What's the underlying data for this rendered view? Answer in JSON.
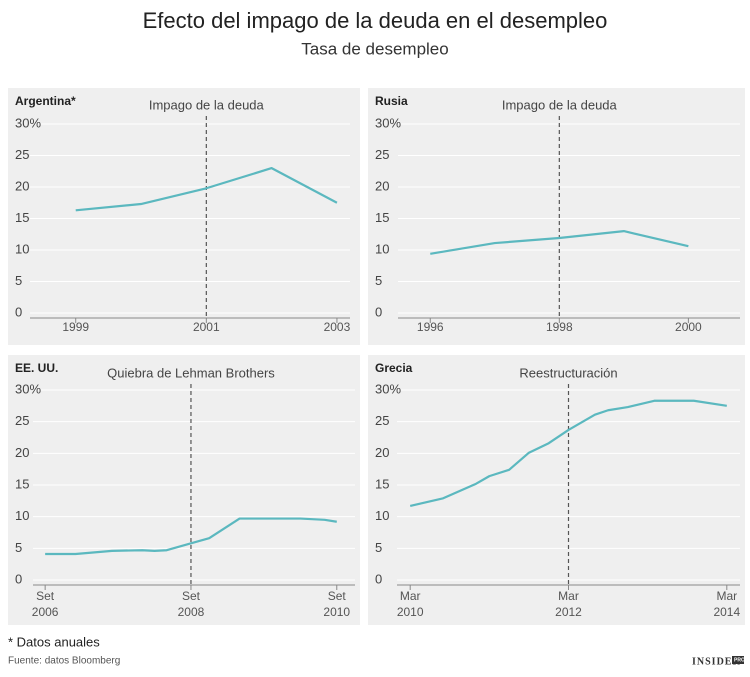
{
  "title": "Efecto del impago de la deuda en el desempleo",
  "subtitle": "Tasa de desempleo",
  "footnote": "* Datos anuales",
  "source": "Fuente: datos Bloomberg",
  "logo": "INSIDER",
  "logo_badge": "PRO",
  "chart_data": [
    {
      "type": "line",
      "title": "Argentina*",
      "color": "#5bb8bf",
      "grid": true,
      "annotation": {
        "text": "Impago de la deuda",
        "x": 2001
      },
      "x": [
        1999,
        2000,
        2001,
        2002,
        2003
      ],
      "values": [
        16.3,
        17.3,
        19.8,
        23.0,
        17.5
      ],
      "xlim": [
        1998.3,
        2003.2
      ],
      "xticks": [
        1999,
        2001,
        2003
      ],
      "ylim": [
        0,
        30
      ],
      "yticks": [
        0,
        5,
        10,
        15,
        20,
        25,
        {
          "value": 30,
          "label": "30%"
        }
      ]
    },
    {
      "type": "line",
      "title": "Rusia",
      "color": "#5bb8bf",
      "grid": true,
      "annotation": {
        "text": "Impago de la deuda",
        "x": 1998
      },
      "x": [
        1996,
        1997,
        1998,
        1999,
        2000
      ],
      "values": [
        9.4,
        11.1,
        11.9,
        13.0,
        10.6
      ],
      "xlim": [
        1995.5,
        2000.8
      ],
      "xticks": [
        1996,
        1998,
        2000
      ],
      "ylim": [
        0,
        30
      ],
      "yticks": [
        0,
        5,
        10,
        15,
        20,
        25,
        {
          "value": 30,
          "label": "30%"
        }
      ]
    },
    {
      "type": "line",
      "title": "EE. UU.",
      "color": "#5bb8bf",
      "grid": true,
      "annotation": {
        "text": "Quiebra de Lehman Brothers",
        "x": "2008-09"
      },
      "x": [
        "2006-09",
        "2007-02",
        "2007-08",
        "2008-01",
        "2008-03",
        "2008-05",
        "2008-09",
        "2008-12",
        "2009-05",
        "2010-03",
        "2010-07",
        "2010-09"
      ],
      "values": [
        4.1,
        4.1,
        4.6,
        4.7,
        4.6,
        4.7,
        5.8,
        6.6,
        9.7,
        9.7,
        9.5,
        9.2
      ],
      "xlim": [
        "2006-07",
        "2010-12"
      ],
      "xticks": [
        {
          "value": "2006-09",
          "label": "Set\n2006"
        },
        {
          "value": "2008-09",
          "label": "Set\n2008"
        },
        {
          "value": "2010-09",
          "label": "Set\n2010"
        }
      ],
      "ylim": [
        0,
        30
      ],
      "yticks": [
        0,
        5,
        10,
        15,
        20,
        25,
        {
          "value": 30,
          "label": "30%"
        }
      ]
    },
    {
      "type": "line",
      "title": "Grecia",
      "color": "#5bb8bf",
      "grid": true,
      "annotation": {
        "text": "Reestructuración",
        "x": "2012-03"
      },
      "x": [
        "2010-03",
        "2010-08",
        "2011-01",
        "2011-03",
        "2011-06",
        "2011-09",
        "2011-12",
        "2012-03",
        "2012-05",
        "2012-07",
        "2012-09",
        "2012-12",
        "2013-04",
        "2013-10",
        "2014-03"
      ],
      "values": [
        11.7,
        12.9,
        15.2,
        16.4,
        17.4,
        20.1,
        21.6,
        23.7,
        24.9,
        26.1,
        26.8,
        27.3,
        28.3,
        28.3,
        27.5
      ],
      "xlim": [
        "2010-01",
        "2014-05"
      ],
      "xticks": [
        {
          "value": "2010-03",
          "label": "Mar\n2010"
        },
        {
          "value": "2012-03",
          "label": "Mar\n2012"
        },
        {
          "value": "2014-03",
          "label": "Mar\n2014"
        }
      ],
      "ylim": [
        0,
        30
      ],
      "yticks": [
        0,
        5,
        10,
        15,
        20,
        25,
        {
          "value": 30,
          "label": "30%"
        }
      ]
    }
  ]
}
